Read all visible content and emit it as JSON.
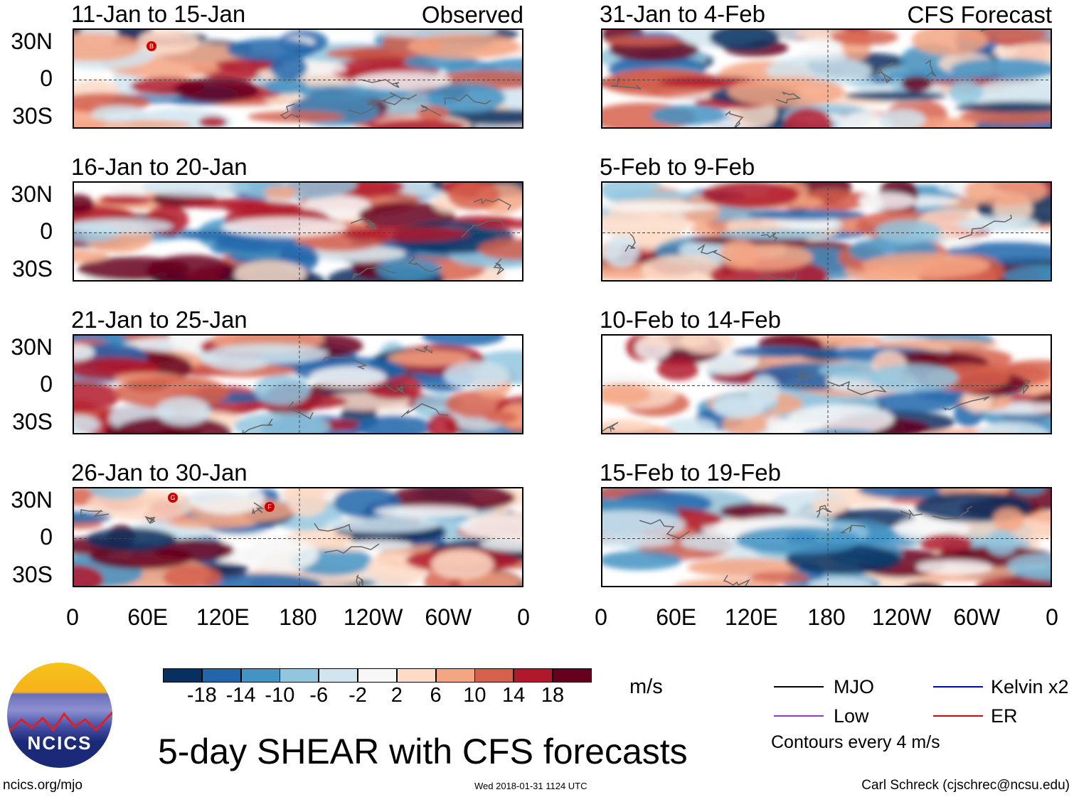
{
  "chart_data": {
    "type": "heatmap",
    "title": "5-day SHEAR with CFS forecasts",
    "units": "m/s",
    "colorbar": {
      "ticks": [
        "-18",
        "-14",
        "-10",
        "-6",
        "-2",
        "2",
        "6",
        "10",
        "14",
        "18"
      ],
      "colors": [
        "#08305f",
        "#2166ac",
        "#4393c3",
        "#92c5de",
        "#d1e5f0",
        "#f7f7f7",
        "#fddbc7",
        "#f4a582",
        "#d6604d",
        "#b2182b",
        "#67001f"
      ]
    },
    "ylabels": [
      "30N",
      "0",
      "30S"
    ],
    "xlabels": [
      "0",
      "60E",
      "120E",
      "180",
      "120W",
      "60W",
      "0"
    ],
    "columns": [
      {
        "header": "Observed",
        "panels": [
          "11-Jan to 15-Jan",
          "16-Jan to 20-Jan",
          "21-Jan to 25-Jan",
          "26-Jan to 30-Jan"
        ]
      },
      {
        "header": "CFS Forecast",
        "panels": [
          "31-Jan to 4-Feb",
          "5-Feb to 9-Feb",
          "10-Feb to 14-Feb",
          "15-Feb to 19-Feb"
        ]
      }
    ],
    "storm_markers": [
      "B",
      "G",
      "F"
    ],
    "legend": [
      {
        "label": "MJO",
        "color": "#000000"
      },
      {
        "label": "Kelvin x2",
        "color": "#0000ff"
      },
      {
        "label": "Low",
        "color": "#9933cc"
      },
      {
        "label": "ER",
        "color": "#e00000"
      }
    ],
    "contour_note": "Contours every 4 m/s"
  },
  "logo": "NCICS",
  "footer": {
    "left": "ncics.org/mjo",
    "center": "Wed 2018-01-31 1124 UTC",
    "right": "Carl Schreck (cjschrec@ncsu.edu)"
  }
}
